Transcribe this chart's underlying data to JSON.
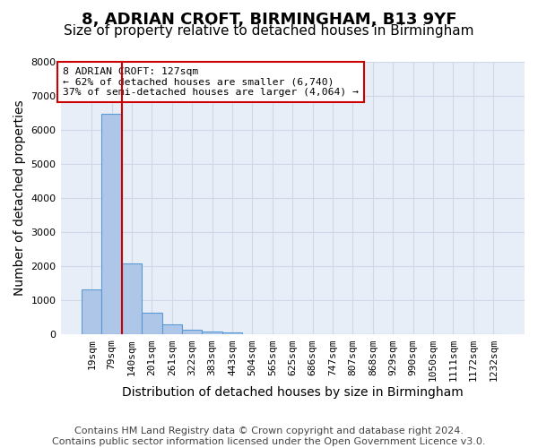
{
  "title": "8, ADRIAN CROFT, BIRMINGHAM, B13 9YF",
  "subtitle": "Size of property relative to detached houses in Birmingham",
  "xlabel": "Distribution of detached houses by size in Birmingham",
  "ylabel": "Number of detached properties",
  "bin_labels": [
    "19sqm",
    "79sqm",
    "140sqm",
    "201sqm",
    "261sqm",
    "322sqm",
    "383sqm",
    "443sqm",
    "504sqm",
    "565sqm",
    "625sqm",
    "686sqm",
    "747sqm",
    "807sqm",
    "868sqm",
    "929sqm",
    "990sqm",
    "1050sqm",
    "1111sqm",
    "1172sqm",
    "1232sqm"
  ],
  "bar_heights": [
    1320,
    6480,
    2080,
    630,
    300,
    150,
    100,
    60,
    0,
    0,
    0,
    0,
    0,
    0,
    0,
    0,
    0,
    0,
    0,
    0,
    0
  ],
  "bar_color": "#aec6e8",
  "bar_edge_color": "#5b9bd5",
  "vline_x": 1.5,
  "vline_color": "#cc0000",
  "ylim": [
    0,
    8000
  ],
  "yticks": [
    0,
    1000,
    2000,
    3000,
    4000,
    5000,
    6000,
    7000,
    8000
  ],
  "annotation_box_text": "8 ADRIAN CROFT: 127sqm\n← 62% of detached houses are smaller (6,740)\n37% of semi-detached houses are larger (4,064) →",
  "annotation_box_color": "#cc0000",
  "footer_line1": "Contains HM Land Registry data © Crown copyright and database right 2024.",
  "footer_line2": "Contains public sector information licensed under the Open Government Licence v3.0.",
  "bg_color": "#ffffff",
  "grid_color": "#d0d8e8",
  "title_fontsize": 13,
  "subtitle_fontsize": 11,
  "axis_label_fontsize": 10,
  "tick_fontsize": 8,
  "footer_fontsize": 8
}
